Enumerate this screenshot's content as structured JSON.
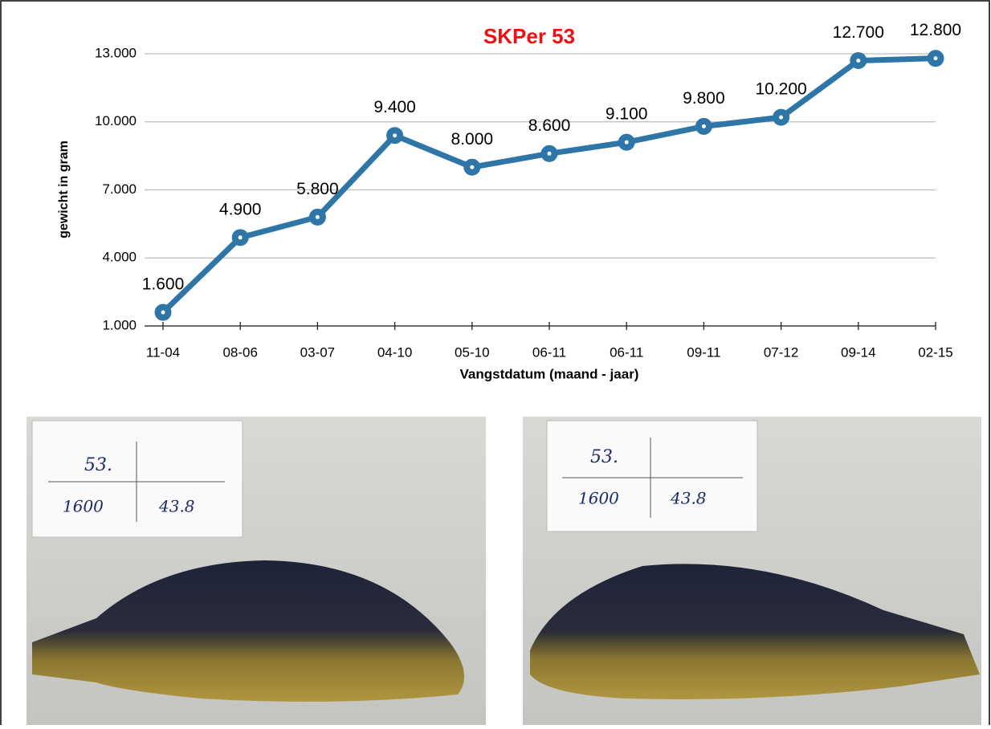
{
  "chart_data": {
    "type": "line",
    "title": "SKPer 53",
    "x_label": "Vangstdatum (maand - jaar)",
    "y_label": "gewicht in gram",
    "categories": [
      "11-04",
      "08-06",
      "03-07",
      "04-10",
      "05-10",
      "06-11",
      "06-11",
      "09-11",
      "07-12",
      "09-14",
      "02-15"
    ],
    "values": [
      1600,
      4900,
      5800,
      9400,
      8000,
      8600,
      9100,
      9800,
      10200,
      12700,
      12800
    ],
    "value_labels": [
      "1.600",
      "4.900",
      "5.800",
      "9.400",
      "8.000",
      "8.600",
      "9.100",
      "9.800",
      "10.200",
      "12.700",
      "12.800"
    ],
    "color": "#2e75a8",
    "ylim": [
      1000,
      13000
    ],
    "yticks": [
      {
        "value": 1000,
        "label": "1.000"
      },
      {
        "value": 4000,
        "label": "4.000"
      },
      {
        "value": 7000,
        "label": "7.000"
      },
      {
        "value": 10000,
        "label": "10.000"
      },
      {
        "value": 13000,
        "label": "13.000"
      }
    ],
    "grid": true
  },
  "photos": [
    {
      "number": "53.",
      "weight": "1600",
      "length": "43.8"
    },
    {
      "number": "53.",
      "weight": "1600",
      "length": "43.8"
    }
  ]
}
